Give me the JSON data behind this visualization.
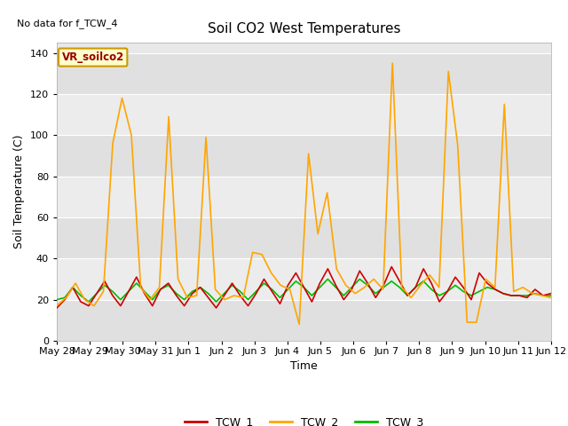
{
  "title": "Soil CO2 West Temperatures",
  "no_data_text": "No data for f_TCW_4",
  "ylabel": "Soil Temperature (C)",
  "xlabel": "Time",
  "annotation_label": "VR_soilco2",
  "ylim": [
    0,
    145
  ],
  "yticks": [
    0,
    20,
    40,
    60,
    80,
    100,
    120,
    140
  ],
  "x_labels": [
    "May 28",
    "May 29",
    "May 30",
    "May 31",
    "Jun 1",
    "Jun 2",
    "Jun 3",
    "Jun 4",
    "Jun 5",
    "Jun 6",
    "Jun 7",
    "Jun 8",
    "Jun 9",
    "Jun 10",
    "Jun 11",
    "Jun 12"
  ],
  "bg_color": "#ffffff",
  "plot_bg_color": "#e8e8e8",
  "band_color": "#d8d8d8",
  "tcw1_color": "#cc0000",
  "tcw2_color": "#ffa500",
  "tcw3_color": "#00bb00",
  "legend_entries": [
    "TCW_1",
    "TCW_2",
    "TCW_3"
  ],
  "tcw1": [
    16,
    20,
    26,
    19,
    17,
    23,
    29,
    22,
    17,
    24,
    31,
    23,
    17,
    25,
    28,
    22,
    17,
    23,
    26,
    21,
    16,
    22,
    28,
    22,
    17,
    23,
    30,
    24,
    18,
    27,
    33,
    26,
    19,
    28,
    35,
    27,
    20,
    25,
    34,
    28,
    21,
    27,
    36,
    29,
    22,
    26,
    35,
    28,
    19,
    24,
    31,
    26,
    20,
    33,
    28,
    25,
    23,
    22,
    22,
    21,
    25,
    22,
    23
  ],
  "tcw2": [
    17,
    21,
    28,
    20,
    17,
    24,
    96,
    118,
    100,
    26,
    20,
    26,
    109,
    30,
    21,
    22,
    99,
    25,
    20,
    22,
    21,
    43,
    42,
    33,
    27,
    25,
    8,
    91,
    52,
    72,
    35,
    27,
    23,
    26,
    30,
    25,
    135,
    26,
    21,
    27,
    32,
    26,
    131,
    95,
    9,
    9,
    30,
    26,
    115,
    24,
    26,
    23,
    22,
    21
  ],
  "tcw3": [
    20,
    21,
    26,
    22,
    19,
    23,
    27,
    24,
    20,
    24,
    28,
    24,
    20,
    25,
    27,
    23,
    20,
    24,
    26,
    23,
    19,
    23,
    27,
    24,
    20,
    24,
    28,
    25,
    21,
    25,
    29,
    26,
    22,
    26,
    30,
    26,
    22,
    26,
    30,
    27,
    23,
    26,
    29,
    26,
    22,
    26,
    29,
    25,
    22,
    24,
    27,
    24,
    22,
    24,
    26,
    25,
    23,
    22,
    22,
    22,
    23,
    22,
    22
  ]
}
